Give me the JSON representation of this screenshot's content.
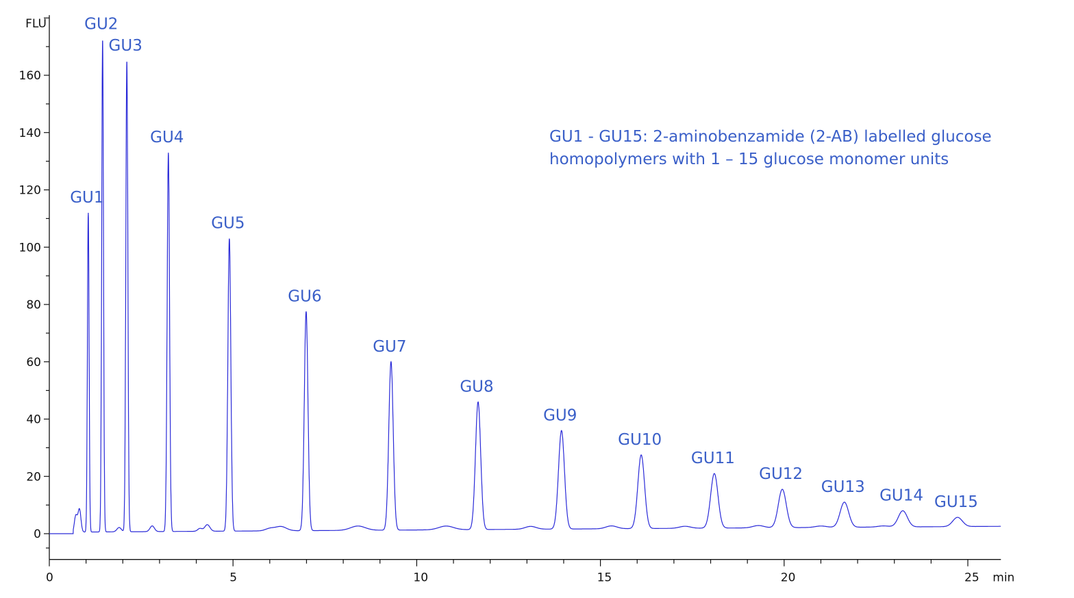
{
  "chart_data": {
    "type": "line",
    "title": "",
    "xlabel": "min",
    "ylabel": "FLU",
    "xlim": [
      0,
      25.9
    ],
    "ylim": [
      -9,
      181
    ],
    "x_ticks": [
      0,
      5,
      10,
      15,
      20,
      25
    ],
    "y_ticks": [
      0,
      20,
      40,
      60,
      80,
      100,
      120,
      140,
      160
    ],
    "grid": false,
    "line_color": "#2a2ad8",
    "label_color": "#3a5fc8",
    "peaks": [
      {
        "label": "GU1",
        "x": 1.06,
        "y": 112
      },
      {
        "label": "GU2",
        "x": 1.45,
        "y": 172.5
      },
      {
        "label": "GU3",
        "x": 2.11,
        "y": 165
      },
      {
        "label": "GU4",
        "x": 3.24,
        "y": 133
      },
      {
        "label": "GU5",
        "x": 4.9,
        "y": 103
      },
      {
        "label": "GU6",
        "x": 6.99,
        "y": 77.5
      },
      {
        "label": "GU7",
        "x": 9.3,
        "y": 60
      },
      {
        "label": "GU8",
        "x": 11.67,
        "y": 46
      },
      {
        "label": "GU9",
        "x": 13.94,
        "y": 36
      },
      {
        "label": "GU10",
        "x": 16.11,
        "y": 27.5
      },
      {
        "label": "GU11",
        "x": 18.1,
        "y": 21
      },
      {
        "label": "GU12",
        "x": 19.95,
        "y": 15.5
      },
      {
        "label": "GU13",
        "x": 21.64,
        "y": 11
      },
      {
        "label": "GU14",
        "x": 23.23,
        "y": 8
      },
      {
        "label": "GU15",
        "x": 24.72,
        "y": 5.7
      }
    ],
    "annotation": "GU1 - GU15: 2-aminobenzamide (2-AB) labelled glucose homopolymers with 1 – 15 glucose monomer units"
  },
  "annotation_lines": [
    "GU1 - GU15: 2-aminobenzamide (2-AB) labelled glucose",
    "homopolymers with 1 – 15 glucose monomer units"
  ]
}
